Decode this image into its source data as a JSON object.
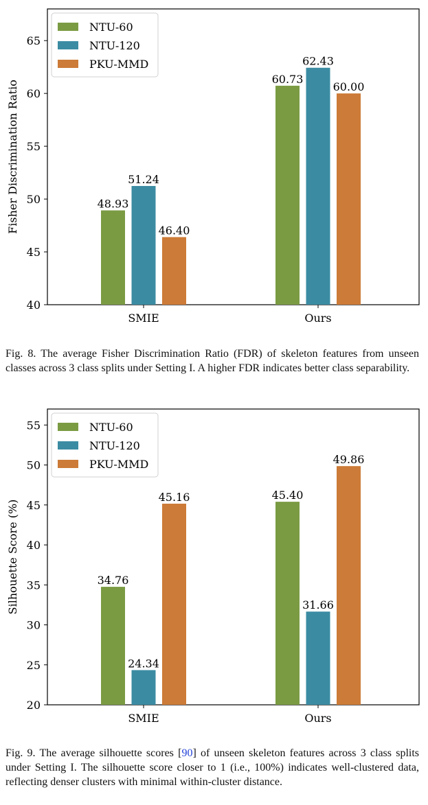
{
  "charts": [
    {
      "type": "bar",
      "categories": [
        "SMIE",
        "Ours"
      ],
      "series": [
        {
          "name": "NTU-60",
          "values": [
            48.93,
            60.73
          ],
          "labels": [
            "48.93",
            "60.73"
          ],
          "color": "#7b9b43"
        },
        {
          "name": "NTU-120",
          "values": [
            51.24,
            62.43
          ],
          "labels": [
            "51.24",
            "62.43"
          ],
          "color": "#3b8ca3"
        },
        {
          "name": "PKU-MMD",
          "values": [
            46.4,
            60.0
          ],
          "labels": [
            "46.40",
            "60.00"
          ],
          "color": "#cc7b38"
        }
      ],
      "ylabel": "Fisher Discrimination Ratio",
      "ylim": [
        40,
        68
      ],
      "yticks": [
        40,
        45,
        50,
        55,
        60,
        65
      ],
      "legend": "top-left",
      "grid": false
    },
    {
      "type": "bar",
      "categories": [
        "SMIE",
        "Ours"
      ],
      "series": [
        {
          "name": "NTU-60",
          "values": [
            34.76,
            45.4
          ],
          "labels": [
            "34.76",
            "45.40"
          ],
          "color": "#7b9b43"
        },
        {
          "name": "NTU-120",
          "values": [
            24.34,
            31.66
          ],
          "labels": [
            "24.34",
            "31.66"
          ],
          "color": "#3b8ca3"
        },
        {
          "name": "PKU-MMD",
          "values": [
            45.16,
            49.86
          ],
          "labels": [
            "45.16",
            "49.86"
          ],
          "color": "#cc7b38"
        }
      ],
      "ylabel": "Silhouette Score (%)",
      "ylim": [
        20,
        57
      ],
      "yticks": [
        20,
        25,
        30,
        35,
        40,
        45,
        50,
        55
      ],
      "legend": "top-left",
      "grid": false
    }
  ],
  "captions": {
    "fig8": "Fig. 8.  The average Fisher Discrimination Ratio (FDR) of skeleton features from unseen classes across 3 class splits under Setting I. A higher FDR indicates better class separability.",
    "fig9_before_cite": "Fig. 9.  The average silhouette scores [",
    "fig9_cite": "90",
    "fig9_after_cite": "] of unseen skeleton features across 3 class splits under Setting I. The silhouette score closer to 1 (i.e., 100%) indicates well-clustered data, reflecting denser clusters with minimal within-cluster distance."
  }
}
